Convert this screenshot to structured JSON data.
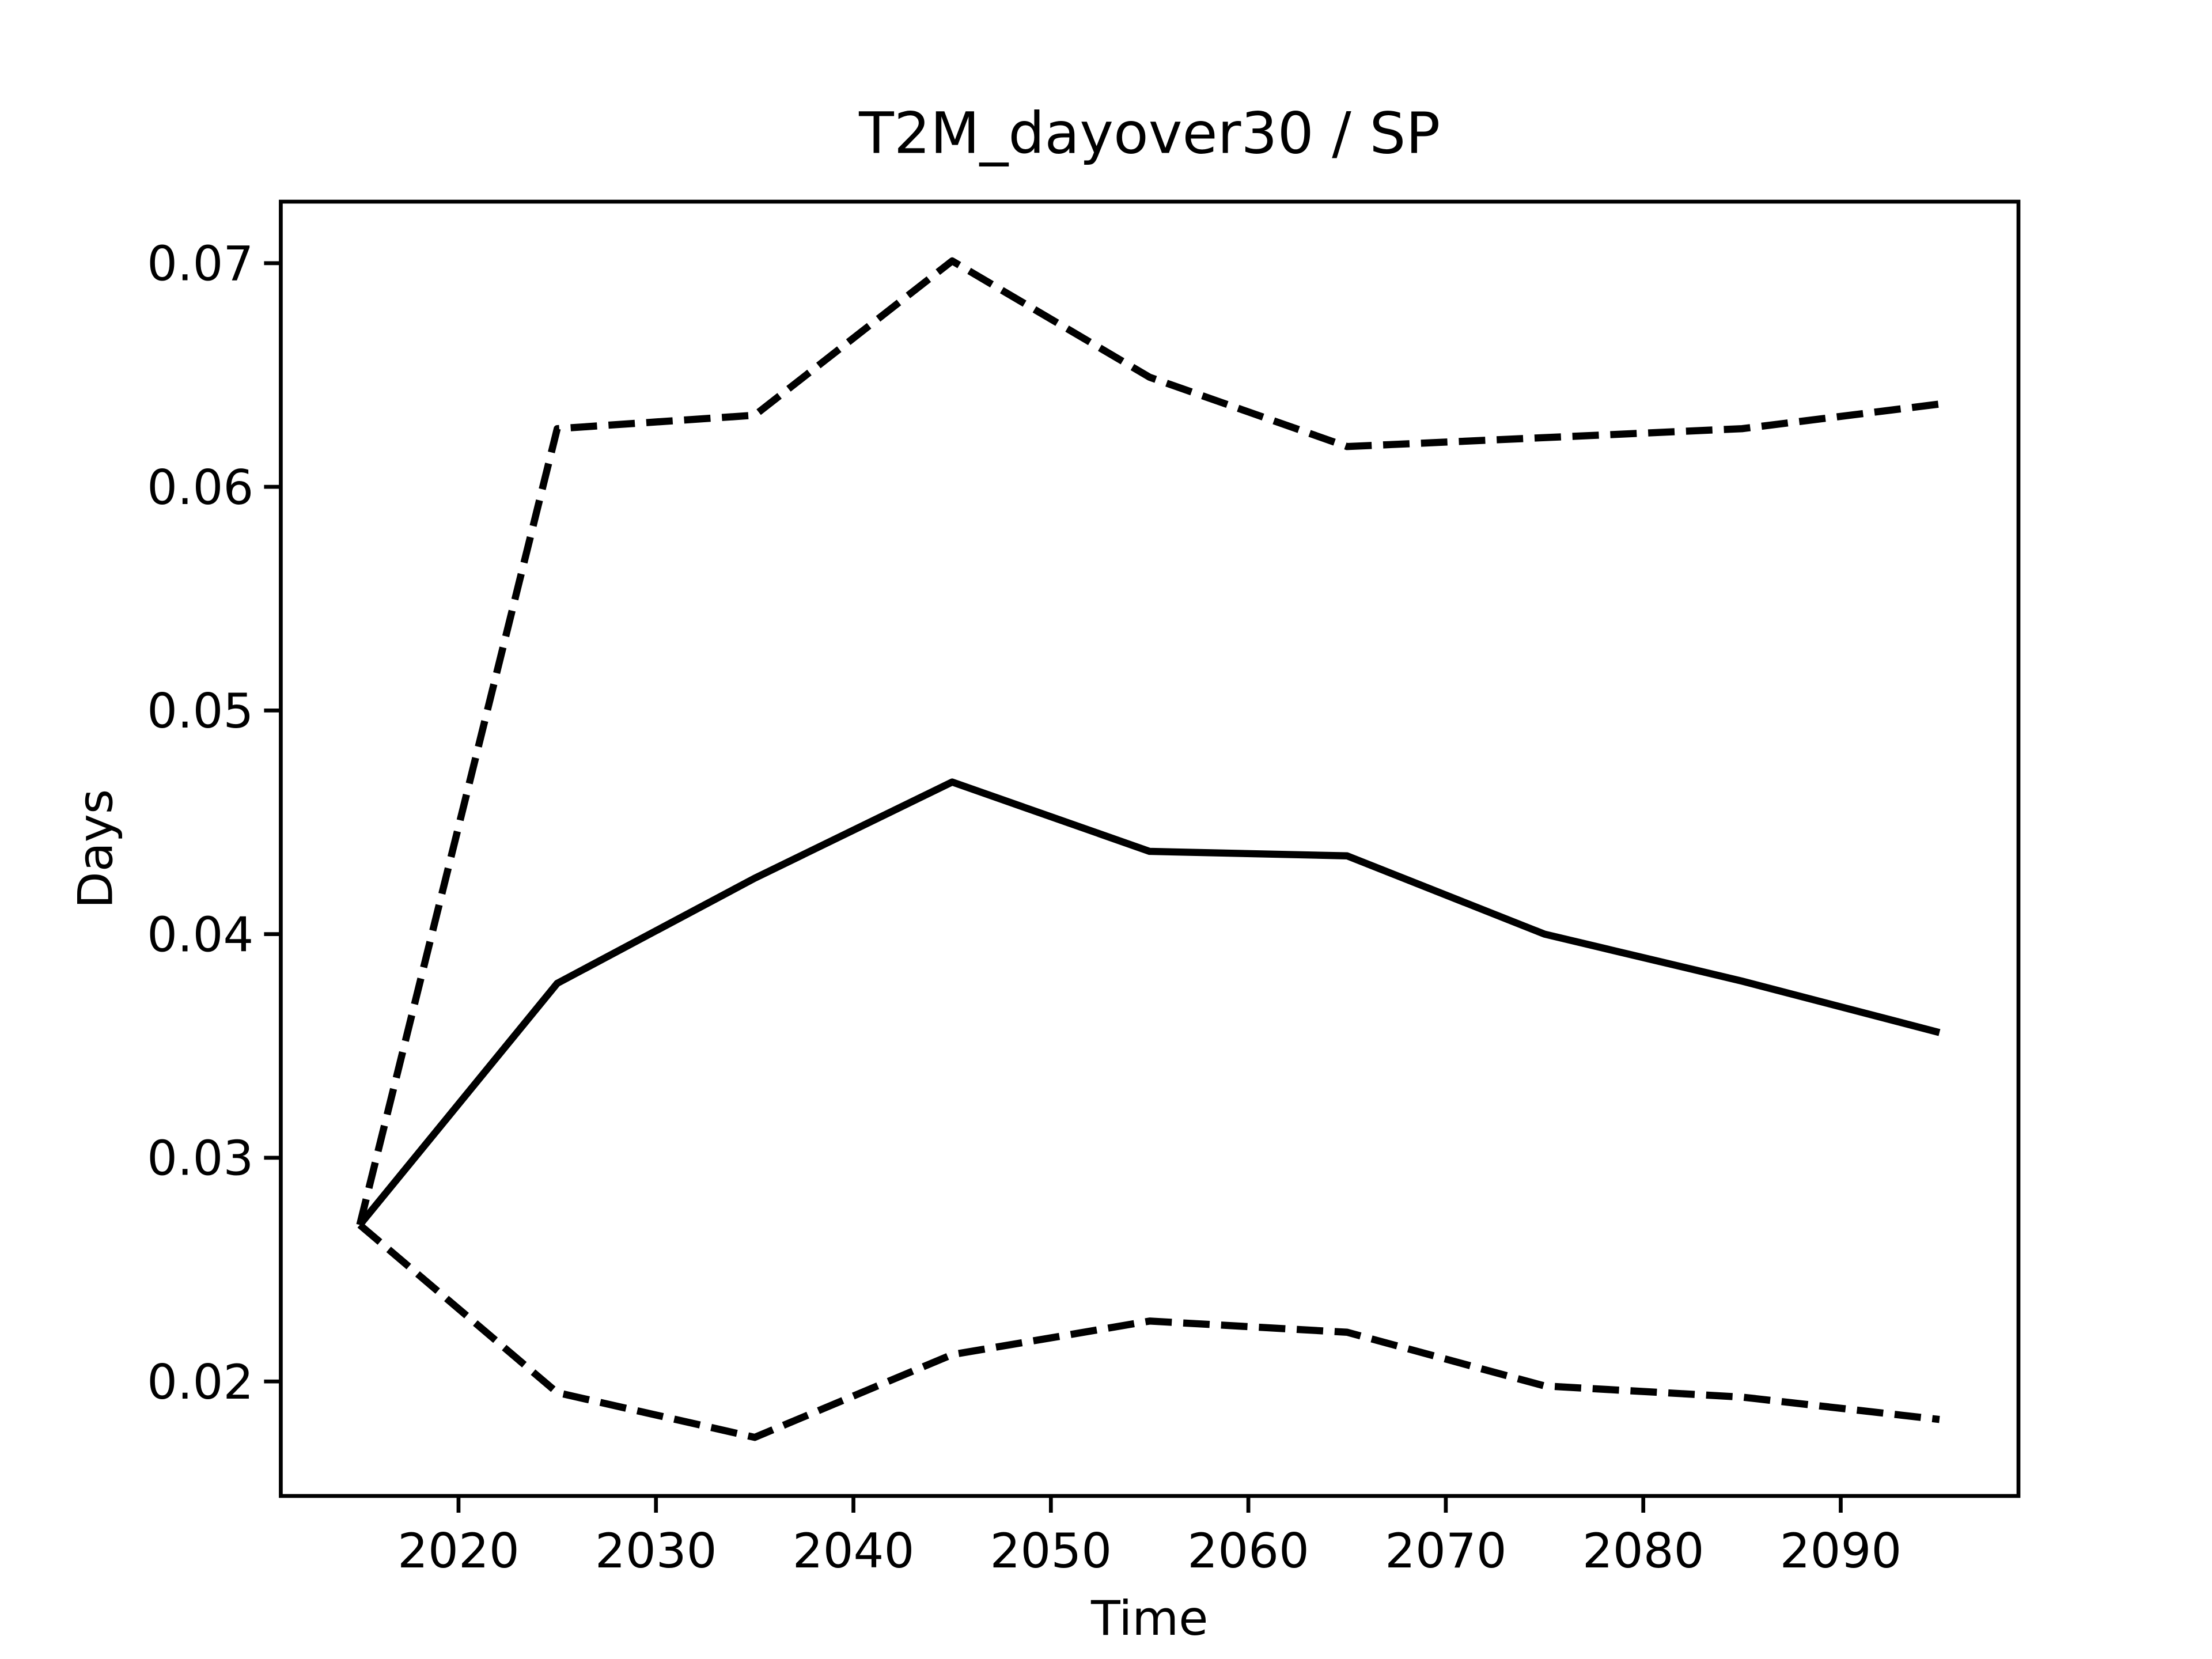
{
  "chart_data": {
    "type": "line",
    "title": "T2M_dayover30 / SP",
    "x_label": "Time",
    "y_label": "Days",
    "x": [
      2015,
      2025,
      2035,
      2045,
      2055,
      2065,
      2075,
      2085,
      2095
    ],
    "series": [
      {
        "color": "#000000",
        "linestyle": "solid",
        "values": [
          0.027,
          0.0378,
          0.0425,
          0.0468,
          0.0437,
          0.0435,
          0.04,
          0.0379,
          0.0356
        ]
      },
      {
        "color": "#000000",
        "linestyle": "dashed",
        "values": [
          0.027,
          0.0626,
          0.0632,
          0.0701,
          0.0649,
          0.0618,
          0.0622,
          0.0626,
          0.0637
        ]
      },
      {
        "color": "#000000",
        "linestyle": "dashed",
        "values": [
          0.027,
          0.0195,
          0.0175,
          0.0212,
          0.0227,
          0.0222,
          0.0198,
          0.0193,
          0.0183
        ]
      }
    ],
    "xlim": [
      2011,
      2099
    ],
    "xticks": [
      2020,
      2030,
      2040,
      2050,
      2060,
      2070,
      2080,
      2090
    ],
    "ylim": [
      0.01488,
      0.07275
    ],
    "yticks": [
      0.02,
      0.03,
      0.04,
      0.05,
      0.06,
      0.07
    ],
    "grid": false
  }
}
